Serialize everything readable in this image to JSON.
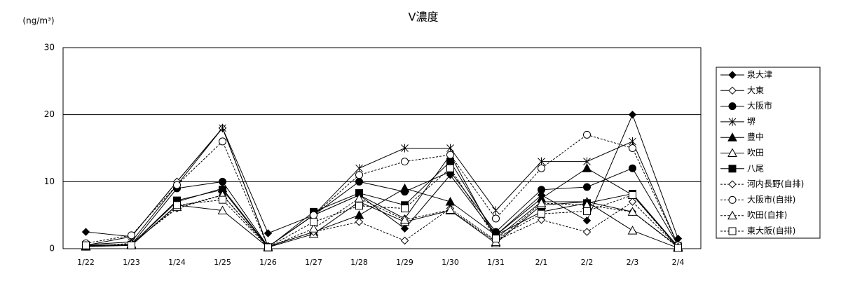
{
  "chart_data": {
    "type": "line",
    "title": "V濃度",
    "y_label": "(ng/m³)",
    "categories": [
      "1/22",
      "1/23",
      "1/24",
      "1/25",
      "1/26",
      "1/27",
      "1/28",
      "1/29",
      "1/30",
      "1/31",
      "2/1",
      "2/2",
      "2/3",
      "2/4"
    ],
    "ylim": [
      0,
      30
    ],
    "yticks": [
      0,
      10,
      20,
      30
    ],
    "grid": true,
    "legend": "right",
    "series": [
      {
        "name": "泉大津",
        "color": "#000000",
        "marker": "diamond",
        "filled": true,
        "dashed": false,
        "values": [
          2.5,
          1.8,
          10,
          18,
          2.3,
          5,
          8,
          3,
          11,
          2,
          8,
          4.2,
          20,
          1.5
        ]
      },
      {
        "name": "大東",
        "color": "#000000",
        "marker": "diamond",
        "filled": false,
        "dashed": false,
        "values": [
          0.5,
          1.8,
          10,
          18,
          0.3,
          5,
          8,
          4.5,
          14,
          1.5,
          7,
          7,
          5.5,
          0.3
        ]
      },
      {
        "name": "大阪市",
        "color": "#000000",
        "marker": "circle",
        "filled": true,
        "dashed": false,
        "values": [
          0.5,
          0.6,
          9,
          10,
          0.3,
          5,
          10,
          8.5,
          11.5,
          2.5,
          8.8,
          9.2,
          12,
          0.5
        ]
      },
      {
        "name": "堺",
        "color": "#000000",
        "marker": "asterisk",
        "filled": true,
        "dashed": false,
        "values": [
          0.6,
          1,
          9.5,
          18,
          0.3,
          5,
          12,
          15,
          15,
          5.7,
          13,
          13,
          16,
          0.5
        ]
      },
      {
        "name": "豊中",
        "color": "#000000",
        "marker": "triangle",
        "filled": true,
        "dashed": false,
        "values": [
          0.4,
          0.6,
          7,
          9,
          0.3,
          2.5,
          5,
          9,
          7,
          2,
          7.5,
          12,
          8,
          0.3
        ]
      },
      {
        "name": "吹田",
        "color": "#000000",
        "marker": "triangle",
        "filled": false,
        "dashed": false,
        "values": [
          0.3,
          0.5,
          6.5,
          5.7,
          0.2,
          2.2,
          7,
          4,
          5.7,
          0.8,
          6.5,
          7,
          2.7,
          0.1
        ]
      },
      {
        "name": "八尾",
        "color": "#000000",
        "marker": "square",
        "filled": true,
        "dashed": false,
        "values": [
          0.5,
          0.6,
          7.2,
          8.8,
          0.2,
          5.5,
          8.3,
          6.5,
          13,
          2,
          5.5,
          6.8,
          8.2,
          0.3
        ]
      },
      {
        "name": "河内長野(自排)",
        "color": "#000000",
        "marker": "diamond",
        "filled": false,
        "dashed": true,
        "values": [
          0.3,
          0.8,
          6,
          8,
          0.3,
          2.5,
          4,
          1.2,
          6,
          1.2,
          4.3,
          2.5,
          7,
          0.2
        ]
      },
      {
        "name": "大阪市(自排)",
        "color": "#000000",
        "marker": "circle",
        "filled": false,
        "dashed": true,
        "values": [
          0.8,
          2,
          9.5,
          16,
          0.3,
          5,
          11,
          13,
          14,
          4.5,
          12,
          17,
          15,
          0.5
        ]
      },
      {
        "name": "吹田(自排)",
        "color": "#000000",
        "marker": "triangle",
        "filled": false,
        "dashed": true,
        "values": [
          0.4,
          0.7,
          6.2,
          8,
          0.2,
          3,
          7.5,
          4.3,
          5.8,
          1,
          6.8,
          6.5,
          5.5,
          0.2
        ]
      },
      {
        "name": "東大阪(自排)",
        "color": "#000000",
        "marker": "square",
        "filled": false,
        "dashed": true,
        "values": [
          0.5,
          0.5,
          6.5,
          7.3,
          0.2,
          4,
          6.4,
          6,
          12,
          1.5,
          5.2,
          5.6,
          8,
          0.1
        ]
      }
    ]
  }
}
